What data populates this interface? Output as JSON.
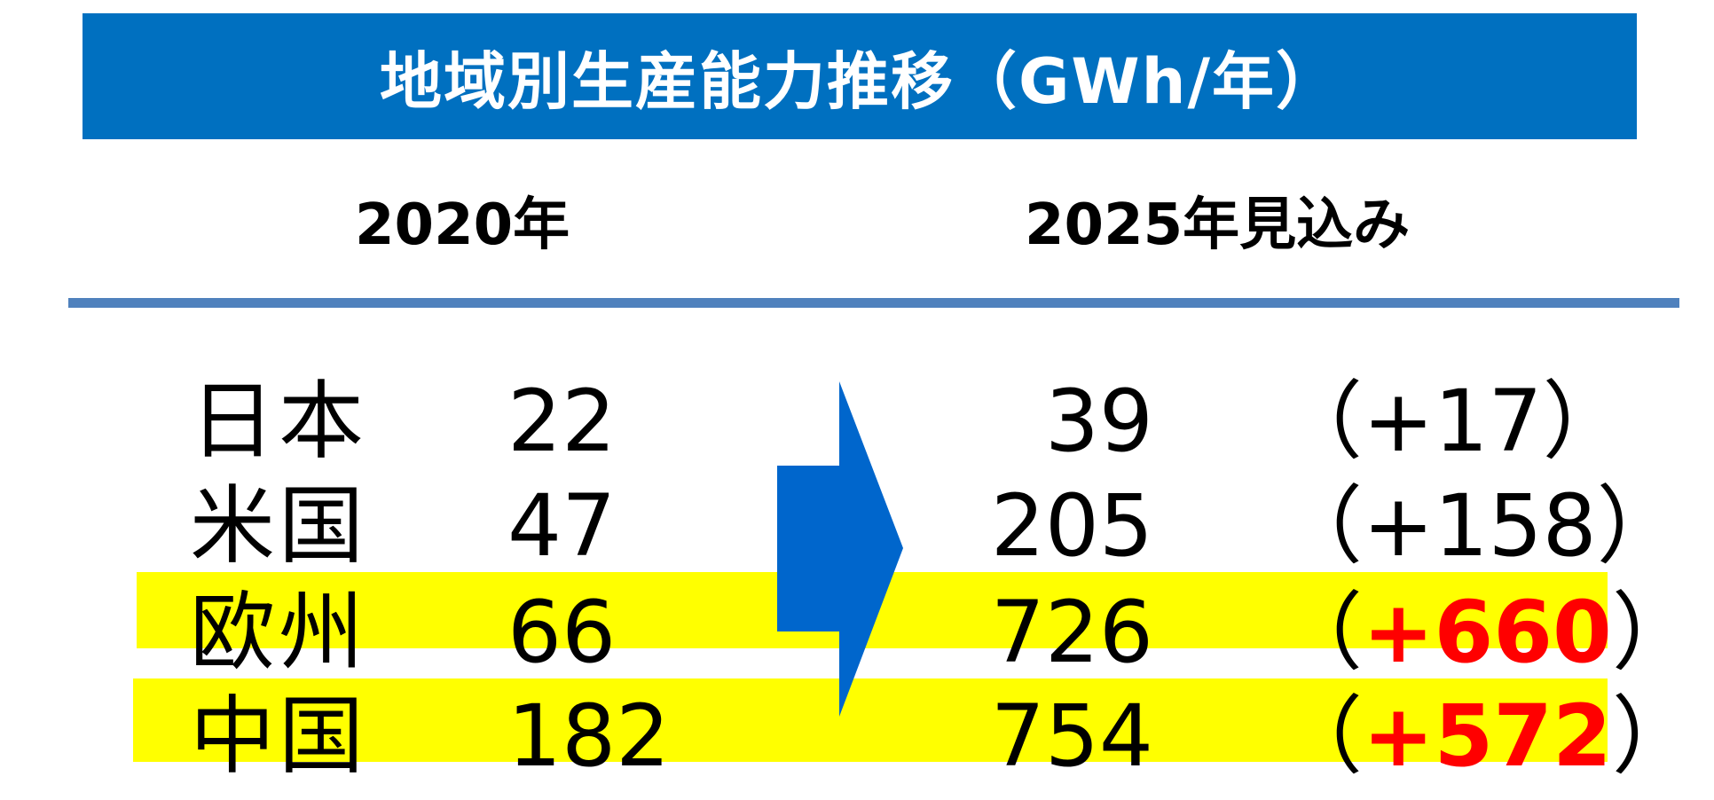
{
  "title": "地域別生産能力推移（GWh/年）",
  "columns": {
    "left": "2020年",
    "right": "2025年見込み"
  },
  "rows": [
    {
      "region": "日本",
      "v2020": "22",
      "v2025": "39",
      "delta_open": "（",
      "delta": "+17",
      "delta_close": "）",
      "highlight": false
    },
    {
      "region": "米国",
      "v2020": "47",
      "v2025": "205",
      "delta_open": "（",
      "delta": "+158",
      "delta_close": "）",
      "highlight": false
    },
    {
      "region": "欧州",
      "v2020": "66",
      "v2025": "726",
      "delta_open": "（",
      "delta": "+660",
      "delta_close": "）",
      "highlight": true
    },
    {
      "region": "中国",
      "v2020": "182",
      "v2025": "754",
      "delta_open": "（",
      "delta": "+572",
      "delta_close": "）",
      "highlight": true
    }
  ],
  "colors": {
    "banner": "#0070c0",
    "rule": "#4f81bd",
    "arrow": "#0066cc",
    "highlight": "#ffff00",
    "emphasis": "#ff0000"
  },
  "icons": {
    "arrow": "right-arrow-icon"
  }
}
